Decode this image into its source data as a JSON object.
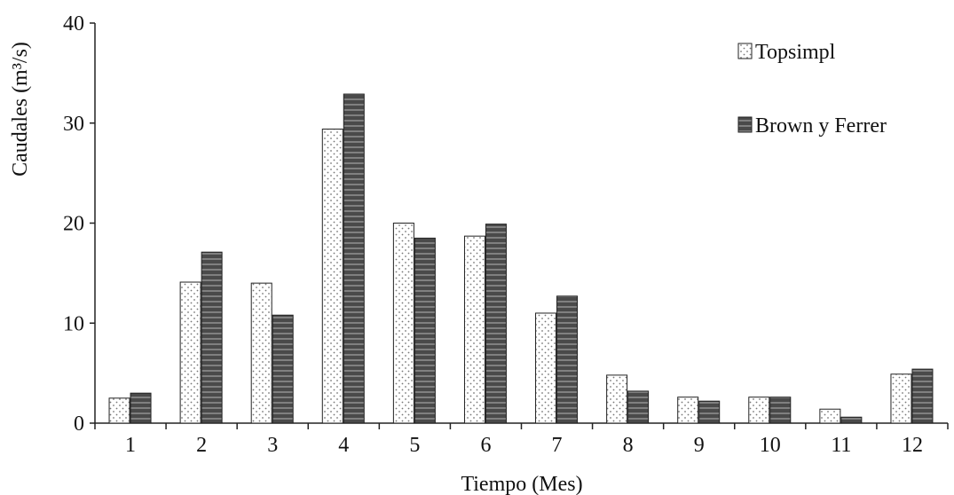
{
  "chart_data": {
    "type": "bar",
    "title": "",
    "xlabel": "Tiempo (Mes)",
    "ylabel": "Caudales (m³/s)",
    "ylim": [
      0,
      40
    ],
    "yticks": [
      0,
      10,
      20,
      30,
      40
    ],
    "categories": [
      "1",
      "2",
      "3",
      "4",
      "5",
      "6",
      "7",
      "8",
      "9",
      "10",
      "11",
      "12"
    ],
    "legend_position": "top-right",
    "series": [
      {
        "name": "Topsimpl",
        "pattern": "dotted",
        "color": "#ffffff",
        "values": [
          2.5,
          14.1,
          14.0,
          29.4,
          20.0,
          18.7,
          11.0,
          4.8,
          2.6,
          2.6,
          1.4,
          4.9
        ]
      },
      {
        "name": "Brown y Ferrer",
        "pattern": "horizontal-stripes",
        "color": "#595959",
        "values": [
          3.0,
          17.1,
          10.8,
          32.9,
          18.5,
          19.9,
          12.7,
          3.2,
          2.2,
          2.6,
          0.6,
          5.4
        ]
      }
    ]
  }
}
